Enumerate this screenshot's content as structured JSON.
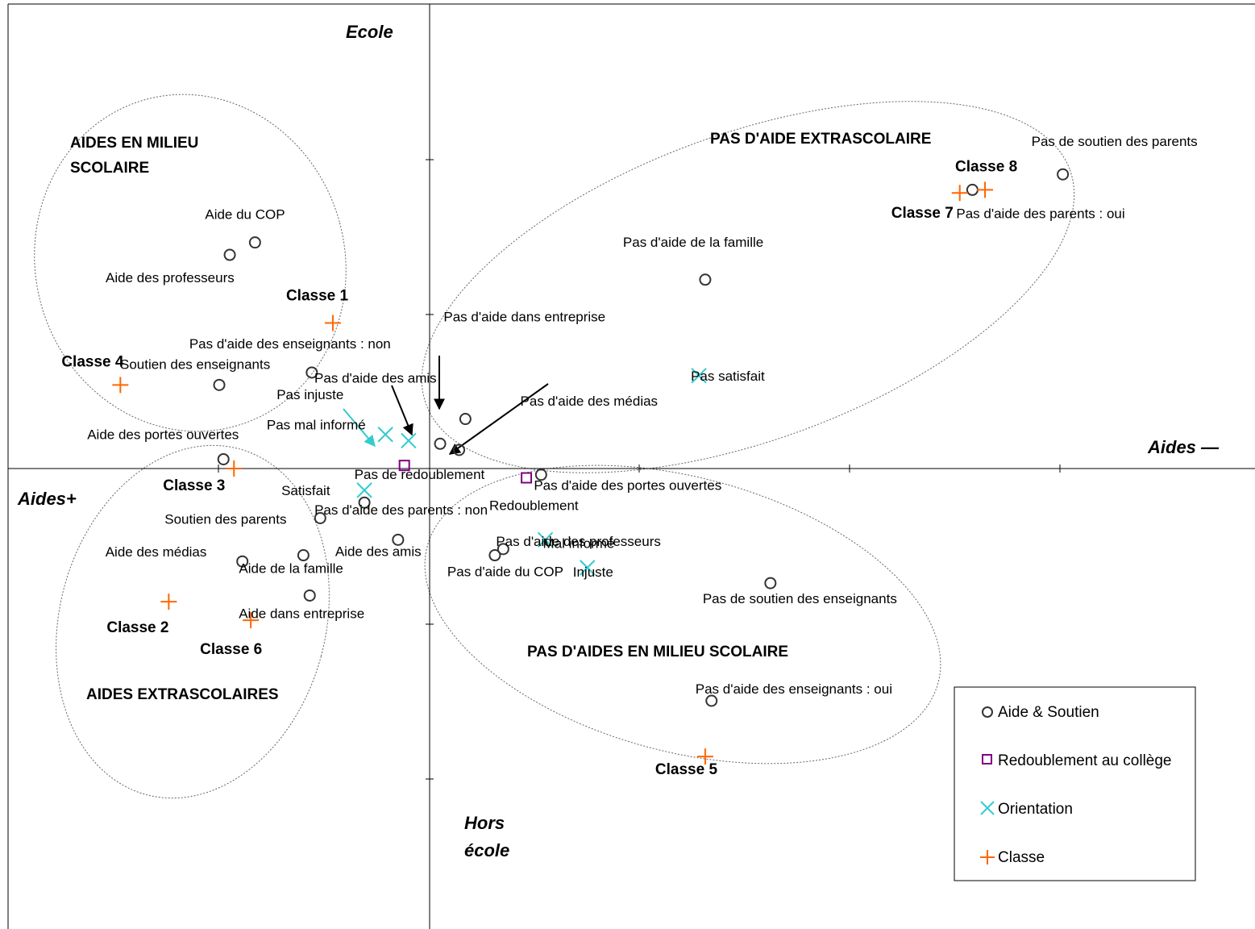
{
  "chart_data": {
    "type": "scatter",
    "xlim": [
      -2.0,
      4.0
    ],
    "ylim": [
      -1.5,
      1.5
    ],
    "grid": false,
    "legend_position": "bottom-right",
    "axis_labels": {
      "top": "Ecole",
      "bottom_line1": "Hors",
      "bottom_line2": "école",
      "left": "Aides+",
      "right": "Aides —"
    },
    "colors": {
      "aide_soutien": "#000000",
      "redoublement": "#800080",
      "orientation": "#33CCCC",
      "classe": "#FF6600",
      "ellipse": "#666666",
      "axis": "#000000"
    },
    "legend": [
      {
        "name": "Aide & Soutien",
        "marker": "circle"
      },
      {
        "name": "Redoublement au collège",
        "marker": "square"
      },
      {
        "name": "Orientation",
        "marker": "x"
      },
      {
        "name": "Classe",
        "marker": "plus"
      }
    ],
    "groups": [
      {
        "line1": "AIDES EN MILIEU",
        "line2": "SCOLAIRE"
      },
      {
        "line1": "PAS D'AIDE EXTRASCOLAIRE"
      },
      {
        "line1": "AIDES EXTRASCOLAIRES"
      },
      {
        "line1": "PAS D'AIDES EN MILIEU SCOLAIRE"
      }
    ],
    "series": [
      {
        "name": "Aide & Soutien",
        "points": [
          {
            "label": "Aide du COP",
            "x": -0.83,
            "y": 0.73
          },
          {
            "label": "Aide des professeurs",
            "x": -0.95,
            "y": 0.69
          },
          {
            "label": "Pas d'aide des enseignants : non",
            "x": -0.56,
            "y": 0.31
          },
          {
            "label": "Soutien des enseignants",
            "x": -1.0,
            "y": 0.27
          },
          {
            "label": "Aide des portes ouvertes",
            "x": -0.98,
            "y": 0.03
          },
          {
            "label": "Pas d'aide des parents : non",
            "x": -0.31,
            "y": -0.11
          },
          {
            "label": "Soutien des parents",
            "x": -0.52,
            "y": -0.16
          },
          {
            "label": "Aide des médias",
            "x": -0.89,
            "y": -0.3
          },
          {
            "label": "Aide de la famille",
            "x": -0.6,
            "y": -0.28
          },
          {
            "label": "Aide des amis",
            "x": -0.15,
            "y": -0.23
          },
          {
            "label": "Aide dans entreprise",
            "x": -0.57,
            "y": -0.41
          },
          {
            "label": "Pas d'aide des amis",
            "x": 0.05,
            "y": 0.08
          },
          {
            "label": "Pas d'aide dans entreprise",
            "x": 0.17,
            "y": 0.16
          },
          {
            "label": "Pas d'aide des médias",
            "x": 0.14,
            "y": 0.06
          },
          {
            "label": "Pas d'aide des portes ouvertes",
            "x": 0.53,
            "y": -0.02
          },
          {
            "label": "Pas d'aide des professeurs",
            "x": 0.35,
            "y": -0.26
          },
          {
            "label": "Pas d'aide du COP",
            "x": 0.31,
            "y": -0.28
          },
          {
            "label": "Pas de soutien des enseignants",
            "x": 1.62,
            "y": -0.37
          },
          {
            "label": "Pas d'aide des enseignants : oui",
            "x": 1.34,
            "y": -0.75
          },
          {
            "label": "Pas d'aide de la famille",
            "x": 1.31,
            "y": 0.61
          },
          {
            "label": "Pas de soutien des parents",
            "x": 3.01,
            "y": 0.95
          },
          {
            "label": "Pas d'aide des parents : oui",
            "x": 2.58,
            "y": 0.9
          }
        ]
      },
      {
        "name": "Redoublement au collège",
        "points": [
          {
            "label": "Pas de redoublement",
            "x": -0.12,
            "y": 0.01
          },
          {
            "label": "Redoublement",
            "x": 0.46,
            "y": -0.03
          }
        ]
      },
      {
        "name": "Orientation",
        "points": [
          {
            "label": "Pas injuste",
            "x": -0.21,
            "y": 0.11
          },
          {
            "label": "Pas mal informé",
            "x": -0.1,
            "y": 0.09
          },
          {
            "label": "Satisfait",
            "x": -0.31,
            "y": -0.07
          },
          {
            "label": "Pas satisfait",
            "x": 1.28,
            "y": 0.3
          },
          {
            "label": "Mal informé",
            "x": 0.55,
            "y": -0.23
          },
          {
            "label": "Injuste",
            "x": 0.75,
            "y": -0.32
          }
        ]
      },
      {
        "name": "Classe",
        "points": [
          {
            "label": "Classe 1",
            "x": -0.46,
            "y": 0.47
          },
          {
            "label": "Classe 2",
            "x": -1.24,
            "y": -0.43
          },
          {
            "label": "Classe 3",
            "x": -0.93,
            "y": 0.0
          },
          {
            "label": "Classe 4",
            "x": -1.47,
            "y": 0.27
          },
          {
            "label": "Classe 5",
            "x": 1.31,
            "y": -0.93
          },
          {
            "label": "Classe 6",
            "x": -0.85,
            "y": -0.49
          },
          {
            "label": "Classe 7",
            "x": 2.52,
            "y": 0.89
          },
          {
            "label": "Classe 8",
            "x": 2.64,
            "y": 0.9
          }
        ]
      }
    ],
    "arrows": [
      {
        "to": "Pas injuste"
      },
      {
        "to": "Pas d'aide des amis"
      },
      {
        "to": "Pas d'aide dans entreprise"
      },
      {
        "to": "Pas d'aide des médias"
      }
    ]
  }
}
